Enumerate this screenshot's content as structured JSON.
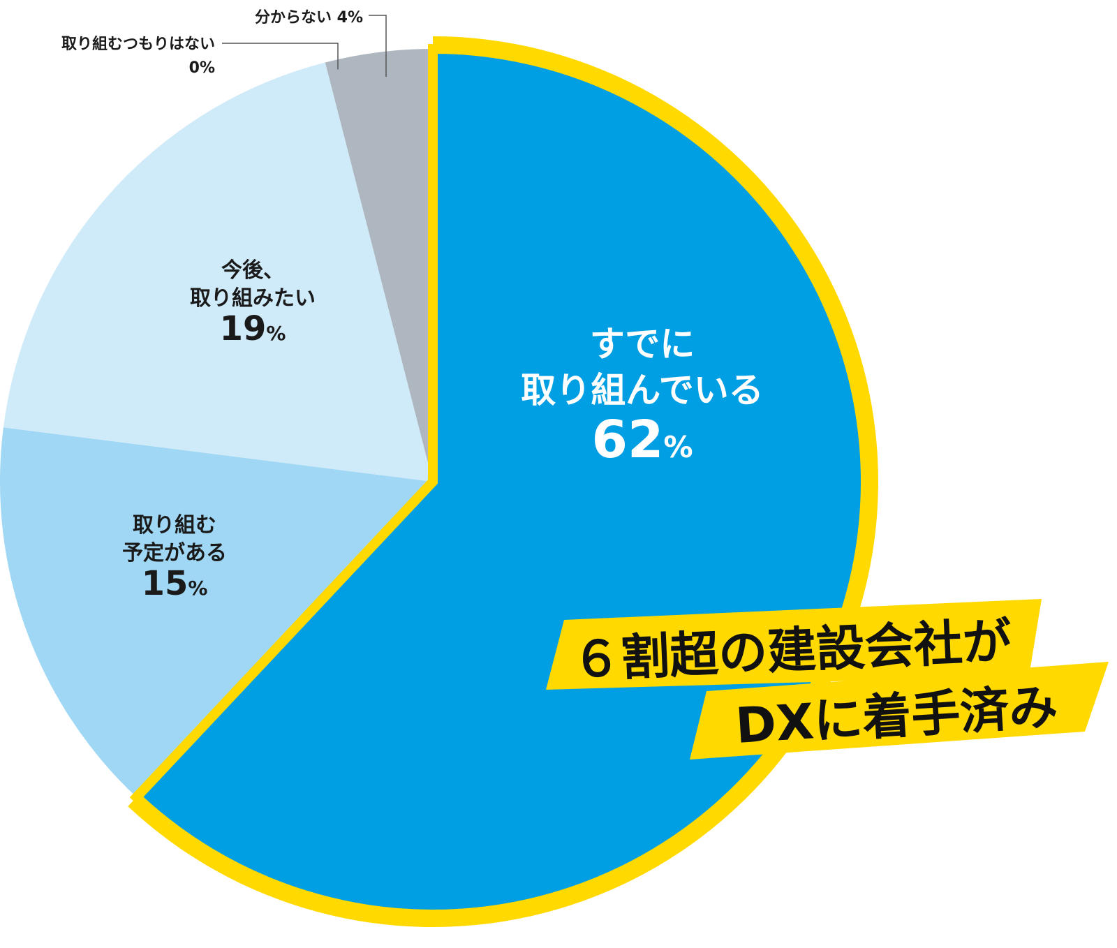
{
  "chart_data": {
    "type": "pie",
    "slices": [
      {
        "label_lines": [
          "すでに",
          "取り組んでいる"
        ],
        "value_text": "62",
        "unit": "%",
        "value": 62,
        "color": "#009fe3"
      },
      {
        "label_lines": [
          "取り組む",
          "予定がある"
        ],
        "value_text": "15",
        "unit": "%",
        "value": 15,
        "color": "#a0d7f4"
      },
      {
        "label_lines": [
          "今後、",
          "取り組みたい"
        ],
        "value_text": "19",
        "unit": "%",
        "value": 19,
        "color": "#cfeaf9"
      },
      {
        "label_lines": [
          "取り組むつもりはない"
        ],
        "value_text": "0",
        "unit": "%",
        "value": 0,
        "color": "#ffffff"
      },
      {
        "label_lines": [
          "分からない"
        ],
        "value_text": "4",
        "unit": "%",
        "value": 4,
        "color": "#aeb7bf"
      }
    ],
    "highlight_color": "#ffd900",
    "callout_lines": [
      "６割超の建設会社が",
      "DXに着手済み"
    ]
  }
}
